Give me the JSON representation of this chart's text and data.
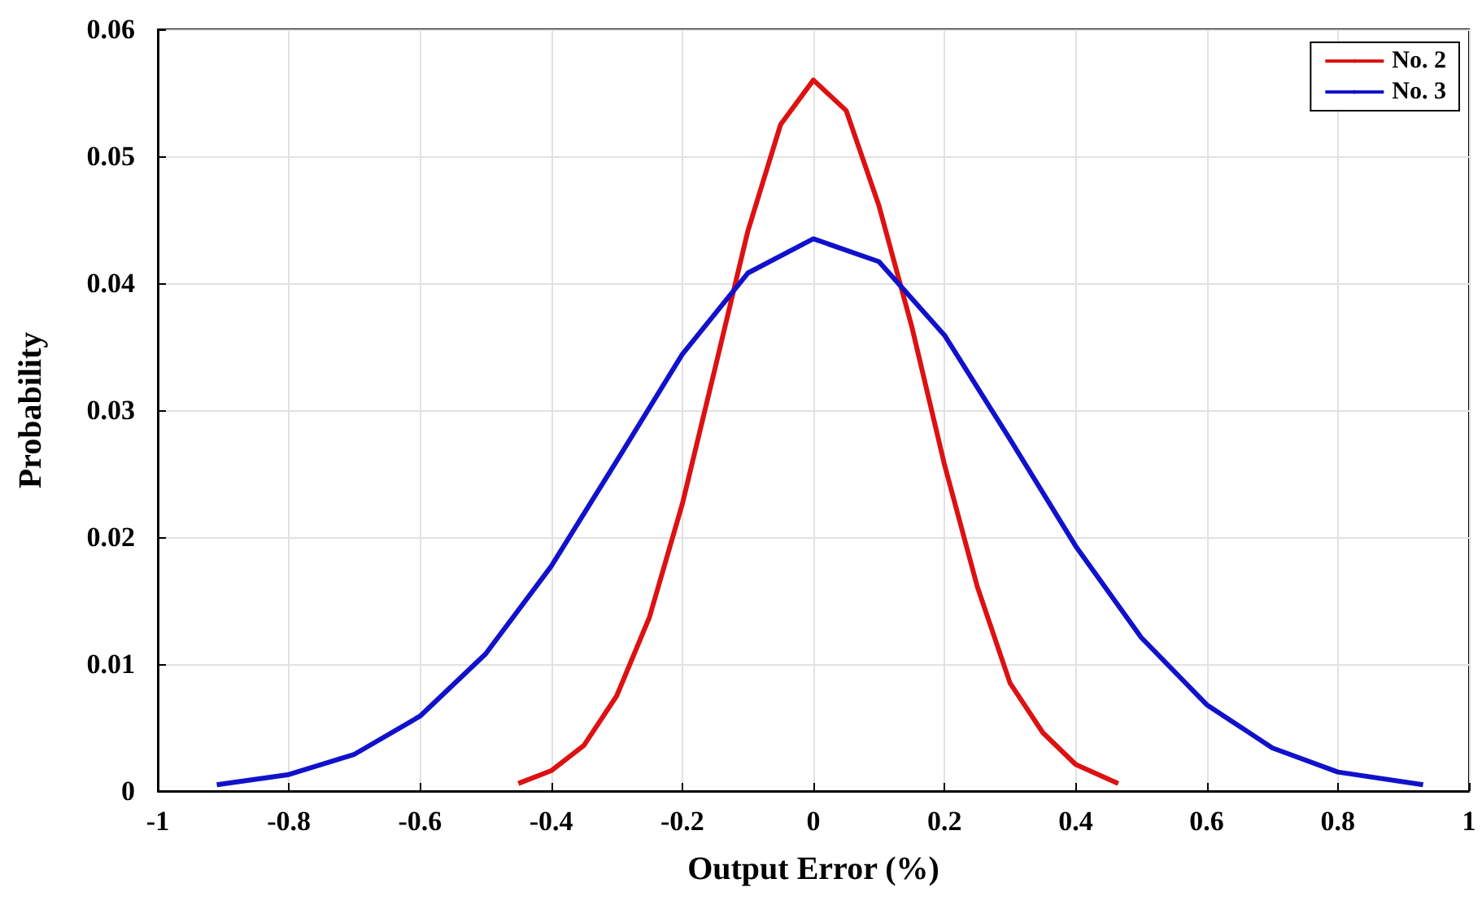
{
  "chart_data": {
    "type": "line",
    "xlabel": "Output Error (%)",
    "ylabel": "Probability",
    "xlim": [
      -1,
      1
    ],
    "xticks": [
      -1,
      -0.8,
      -0.6,
      -0.4,
      -0.2,
      0,
      0.2,
      0.4,
      0.6,
      0.8,
      1
    ],
    "ylim": [
      0,
      0.06
    ],
    "yticks": [
      0,
      0.01,
      0.02,
      0.03,
      0.04,
      0.05,
      0.06
    ],
    "grid": true,
    "legend": "top right",
    "marker": "none",
    "line_style": "solid",
    "series": [
      {
        "name": "No. 2",
        "color": "#dd1111",
        "x": [
          -0.45,
          -0.4,
          -0.35,
          -0.3,
          -0.25,
          -0.2,
          -0.15,
          -0.1,
          -0.05,
          0,
          0.05,
          0.1,
          0.15,
          0.2,
          0.25,
          0.3,
          0.35,
          0.4,
          0.465
        ],
        "values": [
          0.0006,
          0.0016,
          0.0036,
          0.0075,
          0.0137,
          0.0226,
          0.0333,
          0.0441,
          0.0525,
          0.056,
          0.0536,
          0.0461,
          0.0366,
          0.0257,
          0.0161,
          0.0085,
          0.0046,
          0.0021,
          0.0006
        ]
      },
      {
        "name": "No. 3",
        "color": "#1111cc",
        "x": [
          -0.91,
          -0.8,
          -0.7,
          -0.6,
          -0.5,
          -0.4,
          -0.3,
          -0.2,
          -0.1,
          0,
          0.1,
          0.2,
          0.3,
          0.4,
          0.5,
          0.6,
          0.7,
          0.8,
          0.93
        ],
        "values": [
          0.0005,
          0.0013,
          0.0029,
          0.0059,
          0.0108,
          0.0177,
          0.026,
          0.0344,
          0.0408,
          0.0435,
          0.0417,
          0.0359,
          0.0277,
          0.0193,
          0.0121,
          0.0068,
          0.0034,
          0.0015,
          0.0005
        ]
      }
    ]
  }
}
